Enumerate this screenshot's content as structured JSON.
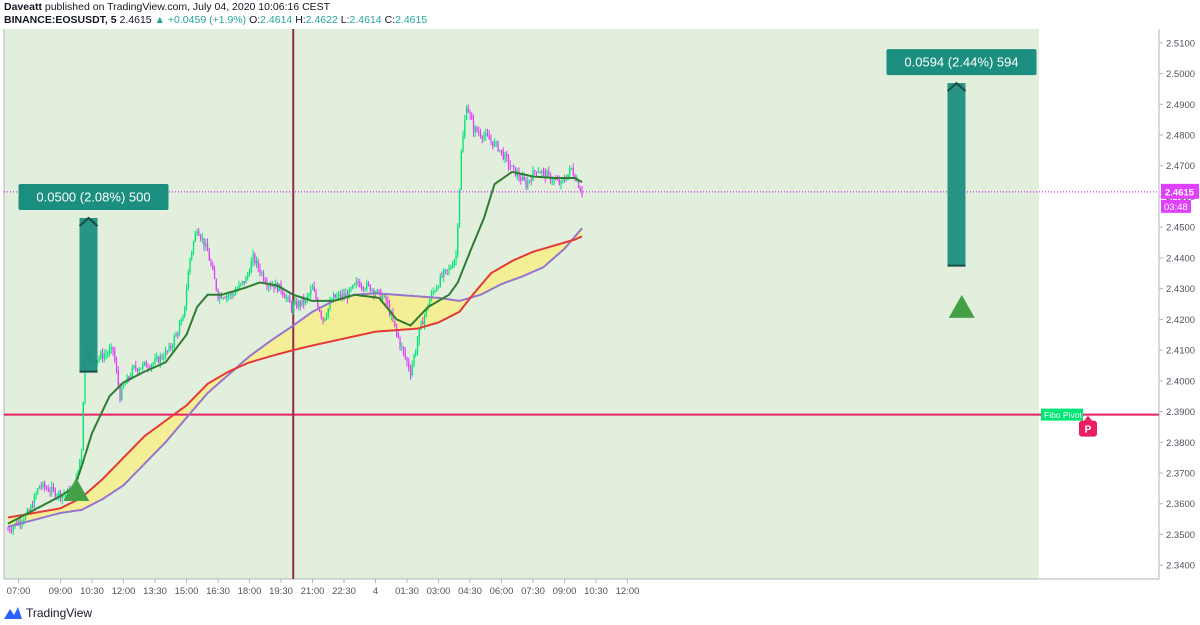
{
  "header": {
    "line1_author": "Daveatt",
    "line1_rest": "published on TradingView.com, July 04, 2020 10:06:16 CEST",
    "symbol": "BINANCE:EOSUSDT, 5",
    "last": "2.4615",
    "change": "+0.0459 (+1.9%)",
    "o_label": "O:",
    "o": "2.4614",
    "h_label": "H:",
    "h": "2.4622",
    "l_label": "L:",
    "l": "2.4614",
    "c_label": "C:",
    "c": "2.4615"
  },
  "footer": {
    "brand": "TradingView"
  },
  "colors": {
    "up": "#26a69a",
    "bull_candle": "#00e676",
    "bear_candle": "#e040fb",
    "bg_session": "#e2efdc",
    "fast_ma": "#2e7d32",
    "red_ma": "#e53935",
    "purple_ma": "#9575cd",
    "fill": "#f7ef8a",
    "pivot": "#e91e63",
    "callout": "#1b8f7f"
  },
  "chart_data": {
    "type": "candlestick",
    "symbol": "BINANCE:EOSUSDT",
    "timeframe": "5",
    "x_tick_labels": [
      "07:00",
      "09:00",
      "10:30",
      "12:00",
      "13:30",
      "15:00",
      "16:30",
      "18:00",
      "19:30",
      "21:00",
      "22:30",
      "4",
      "01:30",
      "03:00",
      "04:30",
      "06:00",
      "07:30",
      "09:00",
      "10:30",
      "12:00"
    ],
    "y_tick_labels": [
      "2.5100",
      "2.5000",
      "2.4900",
      "2.4800",
      "2.4700",
      "2.4600",
      "2.4500",
      "2.4400",
      "2.4300",
      "2.4200",
      "2.4100",
      "2.4000",
      "2.3900",
      "2.3800",
      "2.3700",
      "2.3600",
      "2.3500",
      "2.3400"
    ],
    "y_ticks": [
      2.51,
      2.5,
      2.49,
      2.48,
      2.47,
      2.46,
      2.45,
      2.44,
      2.43,
      2.42,
      2.41,
      2.4,
      2.39,
      2.38,
      2.37,
      2.36,
      2.35,
      2.34
    ],
    "ylim": [
      2.3355,
      2.5145
    ],
    "x_start": "06:30",
    "x_step_minutes": 5,
    "last_price": 2.4615,
    "last_price_label": "2.4615",
    "countdown_label": "03:48",
    "pivot_level": 2.389,
    "pivot_label": "Fibo Pivot",
    "pivot_marker": "P",
    "session_separator": "20:05",
    "close_path_anchors": [
      [
        "06:30",
        2.3515
      ],
      [
        "07:30",
        2.357
      ],
      [
        "08:00",
        2.366
      ],
      [
        "09:00",
        2.363
      ],
      [
        "09:40",
        2.364
      ],
      [
        "10:00",
        2.378
      ],
      [
        "10:10",
        2.41
      ],
      [
        "10:40",
        2.407
      ],
      [
        "11:30",
        2.41
      ],
      [
        "11:50",
        2.395
      ],
      [
        "12:00",
        2.398
      ],
      [
        "12:30",
        2.404
      ],
      [
        "13:30",
        2.406
      ],
      [
        "14:10",
        2.41
      ],
      [
        "14:50",
        2.42
      ],
      [
        "15:10",
        2.44
      ],
      [
        "15:30",
        2.45
      ],
      [
        "16:00",
        2.442
      ],
      [
        "16:30",
        2.428
      ],
      [
        "17:10",
        2.428
      ],
      [
        "17:50",
        2.433
      ],
      [
        "18:10",
        2.44
      ],
      [
        "18:50",
        2.432
      ],
      [
        "19:30",
        2.43
      ],
      [
        "20:00",
        2.424
      ],
      [
        "20:40",
        2.426
      ],
      [
        "21:00",
        2.43
      ],
      [
        "21:30",
        2.42
      ],
      [
        "22:00",
        2.427
      ],
      [
        "22:40",
        2.428
      ],
      [
        "23:10",
        2.432
      ],
      [
        "23:50",
        2.43
      ],
      [
        "00:30",
        2.426
      ],
      [
        "01:10",
        2.412
      ],
      [
        "01:40",
        2.403
      ],
      [
        "02:10",
        2.418
      ],
      [
        "02:40",
        2.428
      ],
      [
        "03:10",
        2.434
      ],
      [
        "03:30",
        2.436
      ],
      [
        "03:50",
        2.441
      ],
      [
        "04:05",
        2.474
      ],
      [
        "04:20",
        2.49
      ],
      [
        "04:40",
        2.482
      ],
      [
        "05:20",
        2.479
      ],
      [
        "05:50",
        2.476
      ],
      [
        "06:30",
        2.469
      ],
      [
        "07:10",
        2.464
      ],
      [
        "07:40",
        2.469
      ],
      [
        "08:20",
        2.466
      ],
      [
        "08:50",
        2.464
      ],
      [
        "09:20",
        2.469
      ],
      [
        "09:50",
        2.4615
      ]
    ],
    "fast_ma_anchors": [
      [
        "06:30",
        2.3535
      ],
      [
        "09:00",
        2.3625
      ],
      [
        "09:40",
        2.3655
      ],
      [
        "10:00",
        2.372
      ],
      [
        "10:30",
        2.383
      ],
      [
        "11:20",
        2.395
      ],
      [
        "12:00",
        2.3995
      ],
      [
        "13:00",
        2.403
      ],
      [
        "14:00",
        2.406
      ],
      [
        "15:00",
        2.415
      ],
      [
        "15:30",
        2.424
      ],
      [
        "16:00",
        2.428
      ],
      [
        "16:40",
        2.428
      ],
      [
        "17:40",
        2.43
      ],
      [
        "18:30",
        2.432
      ],
      [
        "19:20",
        2.431
      ],
      [
        "20:05",
        2.428
      ],
      [
        "21:00",
        2.426
      ],
      [
        "22:00",
        2.426
      ],
      [
        "23:00",
        2.428
      ],
      [
        "00:10",
        2.427
      ],
      [
        "01:00",
        2.42
      ],
      [
        "01:40",
        2.418
      ],
      [
        "02:30",
        2.424
      ],
      [
        "03:30",
        2.428
      ],
      [
        "03:55",
        2.432
      ],
      [
        "04:30",
        2.442
      ],
      [
        "05:10",
        2.453
      ],
      [
        "05:40",
        2.464
      ],
      [
        "06:30",
        2.468
      ],
      [
        "07:30",
        2.4665
      ],
      [
        "08:30",
        2.466
      ],
      [
        "09:30",
        2.466
      ],
      [
        "10:00",
        2.464
      ]
    ],
    "red_ma_anchors": [
      [
        "06:30",
        2.3555
      ],
      [
        "09:00",
        2.3585
      ],
      [
        "10:00",
        2.362
      ],
      [
        "11:00",
        2.368
      ],
      [
        "12:00",
        2.375
      ],
      [
        "13:00",
        2.382
      ],
      [
        "14:00",
        2.387
      ],
      [
        "15:00",
        2.392
      ],
      [
        "16:00",
        2.399
      ],
      [
        "17:00",
        2.403
      ],
      [
        "18:00",
        2.406
      ],
      [
        "19:00",
        2.408
      ],
      [
        "20:05",
        2.41
      ],
      [
        "21:00",
        2.4115
      ],
      [
        "22:00",
        2.413
      ],
      [
        "23:00",
        2.4145
      ],
      [
        "00:00",
        2.416
      ],
      [
        "01:00",
        2.4165
      ],
      [
        "02:00",
        2.417
      ],
      [
        "03:00",
        2.419
      ],
      [
        "04:00",
        2.4225
      ],
      [
        "04:45",
        2.429
      ],
      [
        "05:30",
        2.435
      ],
      [
        "06:30",
        2.439
      ],
      [
        "07:30",
        2.442
      ],
      [
        "08:30",
        2.444
      ],
      [
        "09:30",
        2.446
      ],
      [
        "10:00",
        2.4475
      ]
    ],
    "purple_ma_anchors": [
      [
        "06:30",
        2.3525
      ],
      [
        "09:00",
        2.357
      ],
      [
        "10:00",
        2.358
      ],
      [
        "11:00",
        2.3615
      ],
      [
        "12:00",
        2.366
      ],
      [
        "13:00",
        2.373
      ],
      [
        "14:00",
        2.38
      ],
      [
        "15:00",
        2.388
      ],
      [
        "16:00",
        2.396
      ],
      [
        "17:00",
        2.402
      ],
      [
        "18:00",
        2.408
      ],
      [
        "19:00",
        2.413
      ],
      [
        "20:05",
        2.418
      ],
      [
        "21:00",
        2.4225
      ],
      [
        "22:00",
        2.426
      ],
      [
        "23:00",
        2.428
      ],
      [
        "00:00",
        2.4285
      ],
      [
        "01:00",
        2.428
      ],
      [
        "02:00",
        2.4275
      ],
      [
        "03:00",
        2.427
      ],
      [
        "04:00",
        2.426
      ],
      [
        "05:00",
        2.428
      ],
      [
        "06:00",
        2.4315
      ],
      [
        "07:00",
        2.434
      ],
      [
        "08:00",
        2.437
      ],
      [
        "09:00",
        2.443
      ],
      [
        "10:00",
        2.451
      ]
    ],
    "measure_callouts": [
      {
        "label": "0.0500 (2.08%) 500",
        "from": 2.403,
        "to": 2.453,
        "time": "10:20"
      },
      {
        "label": "0.0594 (2.44%) 594",
        "from": 2.4375,
        "to": 2.4969,
        "time": "03:40"
      }
    ],
    "signal_triangles": [
      {
        "time": "09:45",
        "price": 2.3638
      },
      {
        "time": "03:55",
        "price": 2.4234
      }
    ]
  }
}
